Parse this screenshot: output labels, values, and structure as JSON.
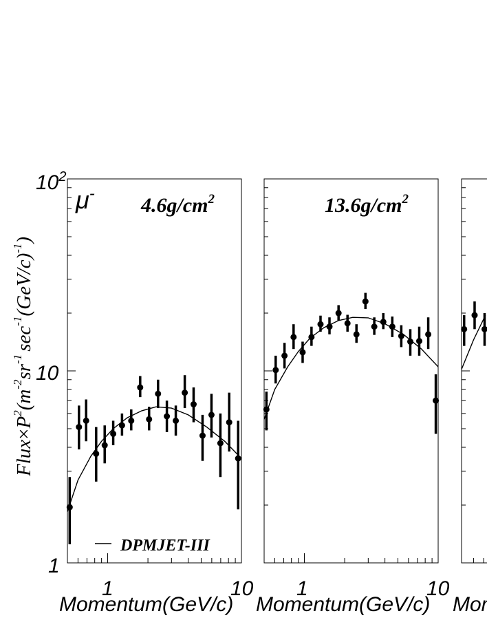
{
  "figure": {
    "ylabel_main": "Flux",
    "ylabel_rest": "P",
    "ylabel_units": "(m",
    "ylabel_units2": "sr",
    "ylabel_units3": "sec",
    "ylabel_units4": "(GeV/c)",
    "ylabel_exp1": "2",
    "ylabel_exp2": "-2",
    "ylabel_exp3": "-1",
    "ylabel_exp4": "-1",
    "ylabel_exp5": "-1",
    "ylabel_times": "×",
    "ylabel_close": ")",
    "particle_base": "μ",
    "particle_sup": "-",
    "legend_label": "DPMJET-III",
    "ytick_top_base": "10",
    "ytick_top_exp": "2",
    "ytick_mid": "10",
    "ytick_bot": "1"
  },
  "chart_data": [
    {
      "type": "scatter",
      "title": "",
      "annotation_base": "4.6g/cm",
      "annotation_exp": "2",
      "xlabel": "Momentum(GeV/c)",
      "xscale": "log",
      "yscale": "log",
      "xlim": [
        0.5,
        10
      ],
      "ylim": [
        1,
        100
      ],
      "xticklabels": [
        "1",
        "10"
      ],
      "series": [
        {
          "x": [
            0.52,
            0.61,
            0.69,
            0.82,
            0.95,
            1.1,
            1.28,
            1.5,
            1.75,
            2.04,
            2.38,
            2.77,
            3.23,
            3.77,
            4.39,
            5.12,
            5.97,
            6.96,
            8.1,
            9.45
          ],
          "y": [
            1.95,
            5.1,
            5.5,
            3.7,
            4.1,
            4.7,
            5.2,
            5.5,
            8.2,
            5.6,
            7.6,
            5.8,
            5.5,
            7.7,
            6.7,
            4.6,
            5.9,
            4.2,
            5.4,
            3.5
          ],
          "ylo": [
            1.25,
            3.9,
            4.3,
            2.65,
            3.3,
            4.1,
            4.6,
            4.9,
            7.3,
            4.9,
            6.4,
            4.8,
            4.6,
            6.4,
            5.4,
            3.4,
            4.5,
            2.8,
            3.8,
            1.9
          ],
          "yhi": [
            2.8,
            6.6,
            7.1,
            5.1,
            5.2,
            5.5,
            6.0,
            6.3,
            9.4,
            6.5,
            9.0,
            7.0,
            6.6,
            9.5,
            8.2,
            5.9,
            7.6,
            6.0,
            7.7,
            5.5
          ]
        }
      ],
      "model": {
        "name": "DPMJET-III",
        "x": [
          0.5,
          0.6,
          0.75,
          0.9,
          1.1,
          1.4,
          1.8,
          2.3,
          3.0,
          4.0,
          5.5,
          7.5,
          10
        ],
        "y": [
          1.85,
          2.7,
          3.6,
          4.3,
          5.0,
          5.7,
          6.2,
          6.5,
          6.4,
          5.9,
          5.1,
          4.3,
          3.5
        ]
      }
    },
    {
      "type": "scatter",
      "title": "",
      "annotation_base": "13.6g/cm",
      "annotation_exp": "2",
      "xlabel": "Momentum(GeV/c)",
      "xscale": "log",
      "yscale": "log",
      "xlim": [
        0.5,
        10
      ],
      "ylim": [
        1,
        100
      ],
      "xticklabels": [
        "1",
        "10"
      ],
      "series": [
        {
          "x": [
            0.52,
            0.61,
            0.71,
            0.83,
            0.97,
            1.13,
            1.32,
            1.54,
            1.8,
            2.1,
            2.45,
            2.86,
            3.33,
            3.89,
            4.54,
            5.3,
            6.19,
            7.22,
            8.43,
            9.6
          ],
          "y": [
            6.3,
            10.1,
            12.0,
            15.0,
            12.5,
            15.0,
            17.5,
            17.0,
            20.0,
            17.7,
            15.5,
            23.0,
            17.0,
            18.0,
            17.0,
            15.2,
            14.2,
            14.3,
            15.5,
            7.0
          ],
          "ylo": [
            4.9,
            8.6,
            10.3,
            13.0,
            11.0,
            13.5,
            16.0,
            15.5,
            18.3,
            16.0,
            14.0,
            21.0,
            15.4,
            16.5,
            15.0,
            13.3,
            12.0,
            12.0,
            13.0,
            4.7
          ],
          "yhi": [
            7.8,
            12.0,
            14.0,
            17.5,
            14.2,
            17.0,
            19.4,
            19.0,
            22.0,
            19.6,
            17.5,
            25.5,
            19.0,
            20.0,
            19.2,
            17.3,
            16.5,
            17.0,
            19.0,
            9.6
          ]
        }
      ],
      "model": {
        "name": "DPMJET-III",
        "x": [
          0.5,
          0.6,
          0.75,
          0.9,
          1.1,
          1.4,
          1.8,
          2.3,
          3.0,
          4.0,
          5.5,
          7.5,
          10
        ],
        "y": [
          5.6,
          8.0,
          10.5,
          12.6,
          14.8,
          16.8,
          18.3,
          19.0,
          18.9,
          17.6,
          15.5,
          13.0,
          10.5
        ]
      }
    },
    {
      "type": "scatter",
      "title": "",
      "annotation_base": "",
      "annotation_exp": "",
      "xlabel": "Momentum(GeV/c)",
      "xscale": "log",
      "yscale": "log",
      "xlim": [
        0.5,
        10
      ],
      "ylim": [
        1,
        100
      ],
      "xticklabels": [],
      "series": [
        {
          "x": [
            0.52,
            0.61,
            0.71
          ],
          "y": [
            16.5,
            19.5,
            16.5
          ],
          "ylo": [
            13.5,
            16.5,
            13.5
          ],
          "yhi": [
            19.5,
            23.0,
            20.0
          ]
        }
      ],
      "model": {
        "name": "DPMJET-III",
        "x": [
          0.5,
          0.6,
          0.72
        ],
        "y": [
          10.2,
          14.5,
          19.5
        ]
      }
    }
  ]
}
